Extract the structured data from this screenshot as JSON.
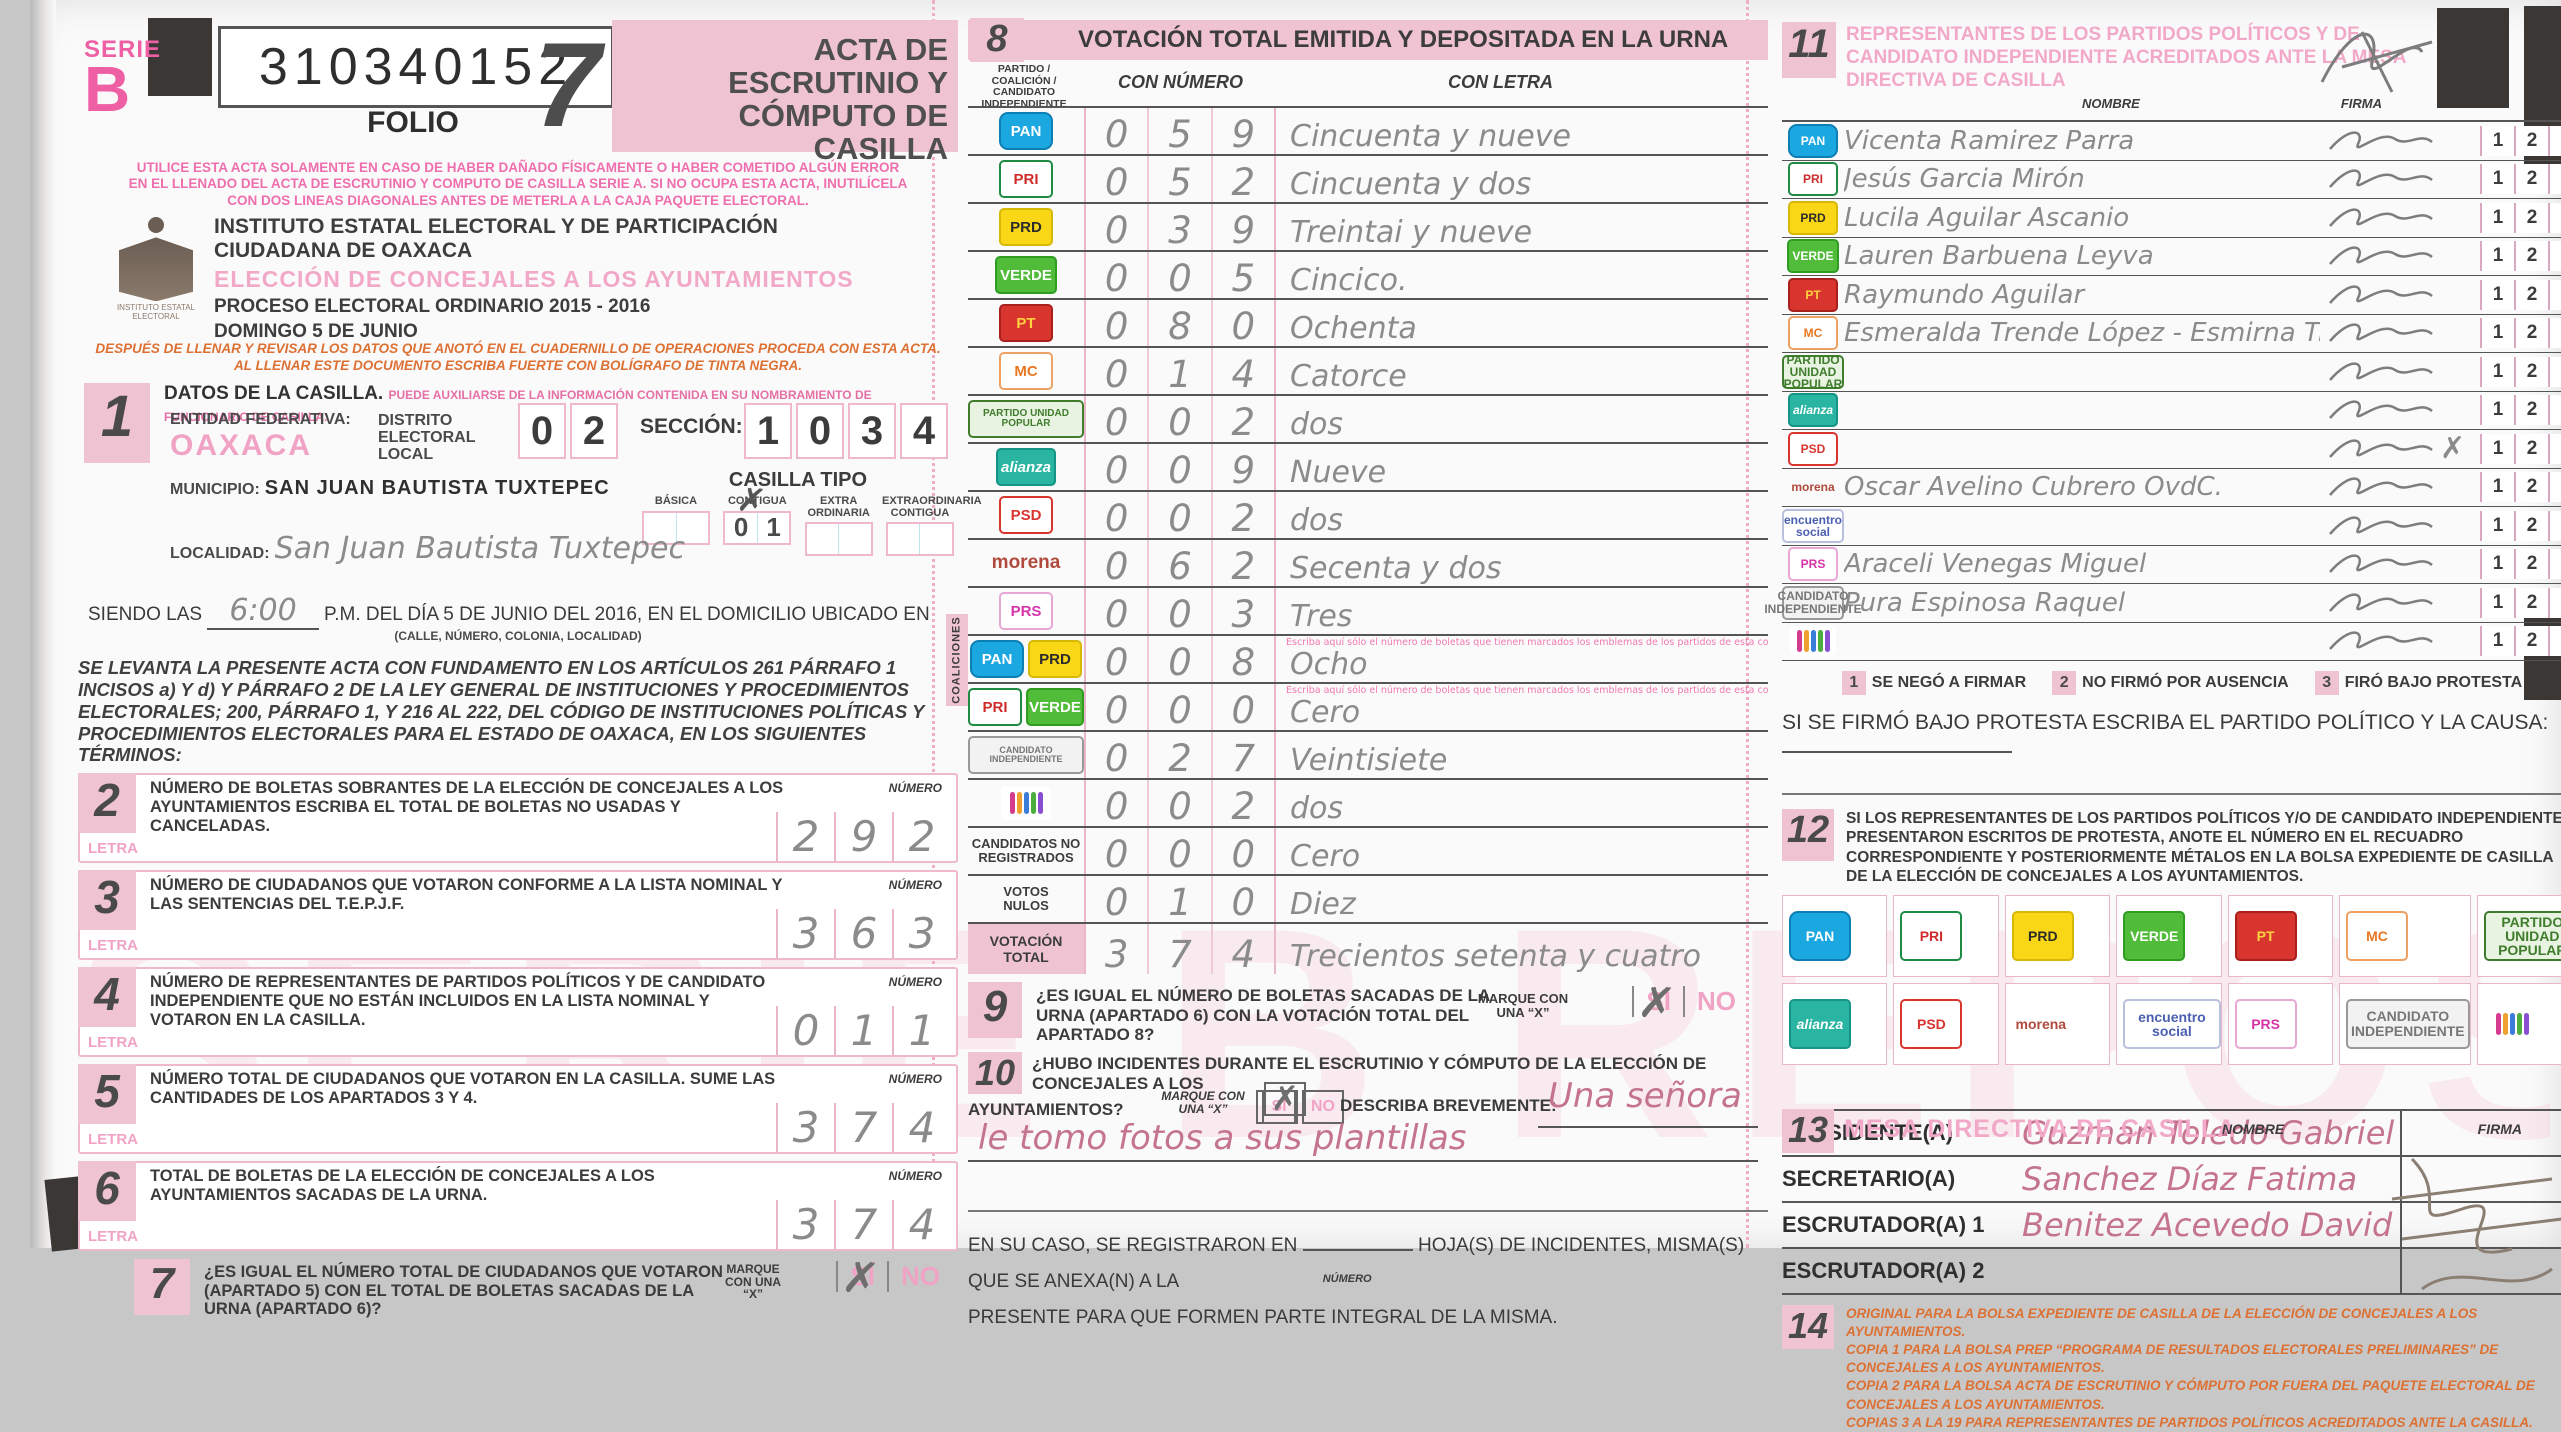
{
  "watermark": "SERIE B REPOSICION",
  "header": {
    "serie_label": "SERIE",
    "serie_letter": "B",
    "folio_number": "310340152",
    "folio_label": "FOLIO",
    "form_number": "7",
    "form_title": "ACTA DE ESCRUTINIO Y CÓMPUTO DE CASILLA",
    "warning_l1": "UTILICE ESTA ACTA SOLAMENTE EN CASO DE HABER DAÑADO FÍSICAMENTE O HABER COMETIDO ALGÚN ERROR",
    "warning_l2": "EN EL LLENADO DEL ACTA DE ESCRUTINIO Y COMPUTO DE CASILLA SERIE A. SI NO OCUPA ESTA ACTA, INUTILÍCELA",
    "warning_l3": "CON DOS LINEAS DIAGONALES ANTES DE METERLA A LA CAJA PAQUETE ELECTORAL.",
    "logo_caption": "INSTITUTO ESTATAL ELECTORAL",
    "institute": "INSTITUTO ESTATAL ELECTORAL Y DE PARTICIPACIÓN CIUDADANA DE OAXACA",
    "election": "ELECCIÓN DE CONCEJALES A LOS AYUNTAMIENTOS",
    "process": "PROCESO ELECTORAL ORDINARIO 2015 - 2016",
    "date": "DOMINGO 5 DE JUNIO",
    "instructions_l1": "DESPUÉS DE LLENAR Y REVISAR LOS DATOS QUE ANOTÓ EN EL CUADERNILLO DE OPERACIONES PROCEDA CON ESTA ACTA.",
    "instructions_l2": "AL LLENAR ESTE DOCUMENTO ESCRIBA FUERTE CON BOLÍGRAFO DE TINTA NEGRA."
  },
  "section1": {
    "num": "1",
    "title": "DATOS DE LA CASILLA.",
    "note": "PUEDE AUXILIARSE DE LA INFORMACIÓN CONTENIDA EN SU NOMBRAMIENTO DE FUNCIONARIO DE CASILLA.",
    "entidad_label": "ENTIDAD FEDERATIVA:",
    "entidad_value": "OAXACA",
    "distrito_label": "DISTRITO ELECTORAL LOCAL",
    "distrito_digits": "02",
    "seccion_label": "SECCIÓN:",
    "seccion_digits": "1034",
    "municipio_label": "MUNICIPIO:",
    "municipio_value": "SAN JUAN BAUTISTA TUXTEPEC",
    "casilla_tipo_label": "CASILLA TIPO",
    "tipos": [
      {
        "label": "BÁSICA",
        "mark": "",
        "digits": ""
      },
      {
        "label": "CONTIGUA",
        "mark": "✗",
        "digits": "01"
      },
      {
        "label": "EXTRA ORDINARIA",
        "mark": "",
        "digits": ""
      },
      {
        "label": "EXTRAORDINARIA CONTIGUA",
        "mark": "",
        "digits": ""
      }
    ],
    "localidad_label": "LOCALIDAD:",
    "localidad_value": "San Juan Bautista Tuxtepec",
    "siendo_prefix": "SIENDO LAS",
    "time_value": "6:00",
    "siendo_suffix": "P.M. DEL DÍA 5 DE JUNIO DEL 2016, EN EL DOMICILIO UBICADO EN",
    "street_note": "(CALLE, NÚMERO, COLONIA, LOCALIDAD)"
  },
  "legal_text": "SE LEVANTA LA PRESENTE ACTA CON FUNDAMENTO EN LOS ARTÍCULOS 261 PÁRRAFO 1 INCISOS a) Y d) Y PÁRRAFO 2 DE LA LEY GENERAL DE INSTITUCIONES Y PROCEDIMIENTOS ELECTORALES; 200, PÁRRAFO 1, Y 216 AL 222, DEL CÓDIGO DE INSTITUCIONES POLÍTICAS Y PROCEDIMIENTOS ELECTORALES PARA EL ESTADO DE OAXACA, EN LOS SIGUIENTES TÉRMINOS:",
  "counts": [
    {
      "num": "2",
      "text": "NÚMERO DE BOLETAS SOBRANTES DE LA ELECCIÓN DE CONCEJALES A LOS AYUNTAMIENTOS ESCRIBA EL TOTAL DE BOLETAS NO USADAS Y CANCELADAS.",
      "numero_label": "NÚMERO",
      "letra_label": "LETRA",
      "value": "292"
    },
    {
      "num": "3",
      "text": "NÚMERO DE CIUDADANOS QUE VOTARON CONFORME A LA LISTA NOMINAL Y LAS SENTENCIAS DEL T.E.P.J.F.",
      "numero_label": "NÚMERO",
      "letra_label": "LETRA",
      "value": "363"
    },
    {
      "num": "4",
      "text": "NÚMERO DE REPRESENTANTES DE PARTIDOS POLÍTICOS Y DE CANDIDATO INDEPENDIENTE QUE NO ESTÁN INCLUIDOS EN LA LISTA NOMINAL Y VOTARON EN LA CASILLA.",
      "numero_label": "NÚMERO",
      "letra_label": "LETRA",
      "value": "011"
    },
    {
      "num": "5",
      "text": "NÚMERO TOTAL DE CIUDADANOS QUE VOTARON EN LA CASILLA. SUME LAS CANTIDADES DE LOS APARTADOS 3 Y 4.",
      "numero_label": "NÚMERO",
      "letra_label": "LETRA",
      "value": "374"
    },
    {
      "num": "6",
      "text": "TOTAL DE BOLETAS DE LA ELECCIÓN DE CONCEJALES A LOS AYUNTAMIENTOS SACADAS DE LA URNA.",
      "numero_label": "NÚMERO",
      "letra_label": "LETRA",
      "value": "374"
    }
  ],
  "section7": {
    "num": "7",
    "question": "¿ES IGUAL EL NÚMERO TOTAL DE CIUDADANOS QUE VOTARON (APARTADO 5) CON EL TOTAL DE BOLETAS SACADAS DE LA URNA (APARTADO 6)?",
    "marque": "MARQUE CON UNA “X”",
    "si": "SÍ",
    "no": "NO",
    "answer": "SÍ"
  },
  "section8": {
    "num": "8",
    "title": "VOTACIÓN TOTAL EMITIDA Y DEPOSITADA EN LA URNA",
    "col_party": "PARTIDO / COALICIÓN / CANDIDATO INDEPENDIENTE",
    "col_num": "CON NÚMERO",
    "col_letra": "CON LETRA",
    "coaliciones_label": "COALICIONES",
    "rows": [
      {
        "party": "PAN",
        "logo": "pan-logo",
        "logo_class": "l-pan",
        "logo_text": "PAN",
        "logo_class2": "none",
        "logo_text2": "",
        "digits": "059",
        "letra": "Cincuenta y nueve",
        "note": "",
        "note_class": "none",
        "row_class": ""
      },
      {
        "party": "PRI",
        "logo": "pri-logo",
        "logo_class": "l-pri",
        "logo_text": "PRI",
        "logo_class2": "none",
        "logo_text2": "",
        "digits": "052",
        "letra": "Cincuenta y dos",
        "note": "",
        "note_class": "none",
        "row_class": ""
      },
      {
        "party": "PRD",
        "logo": "prd-logo",
        "logo_class": "l-prd",
        "logo_text": "PRD",
        "logo_class2": "none",
        "logo_text2": "",
        "digits": "039",
        "letra": "Treintai y nueve",
        "note": "",
        "note_class": "none",
        "row_class": ""
      },
      {
        "party": "PARTIDO VERDE",
        "logo": "verde-logo",
        "logo_class": "l-verde",
        "logo_text": "VERDE",
        "logo_class2": "none",
        "logo_text2": "",
        "digits": "005",
        "letra": "Cincico.",
        "note": "",
        "note_class": "none",
        "row_class": ""
      },
      {
        "party": "PT",
        "logo": "pt-logo",
        "logo_class": "l-pt",
        "logo_text": "PT",
        "logo_class2": "none",
        "logo_text2": "",
        "digits": "080",
        "letra": "Ochenta",
        "note": "",
        "note_class": "none",
        "row_class": ""
      },
      {
        "party": "MOVIMIENTO CIUDADANO",
        "logo": "movimiento-ciudadano-logo",
        "logo_class": "l-mc",
        "logo_text": "MC",
        "logo_class2": "none",
        "logo_text2": "",
        "digits": "014",
        "letra": "Catorce",
        "note": "",
        "note_class": "none",
        "row_class": ""
      },
      {
        "party": "PARTIDO UNIDAD POPULAR",
        "logo": "unidad-popular-logo",
        "logo_class": "l-up",
        "logo_text": "PARTIDO UNIDAD POPULAR",
        "logo_class2": "none",
        "logo_text2": "",
        "digits": "002",
        "letra": "dos",
        "note": "",
        "note_class": "none",
        "row_class": ""
      },
      {
        "party": "NUEVA ALIANZA",
        "logo": "nueva-alianza-logo",
        "logo_class": "l-na",
        "logo_text": "alianza",
        "logo_class2": "none",
        "logo_text2": "",
        "digits": "009",
        "letra": "Nueve",
        "note": "",
        "note_class": "none",
        "row_class": ""
      },
      {
        "party": "PSD",
        "logo": "psd-logo",
        "logo_class": "l-psd",
        "logo_text": "PSD",
        "logo_class2": "none",
        "logo_text2": "",
        "digits": "002",
        "letra": "dos",
        "note": "",
        "note_class": "none",
        "row_class": ""
      },
      {
        "party": "MORENA",
        "logo": "morena-logo",
        "logo_class": "l-morena",
        "logo_text": "morena",
        "logo_class2": "none",
        "logo_text2": "",
        "digits": "062",
        "letra": "Secenta y dos",
        "note": "",
        "note_class": "none",
        "row_class": ""
      },
      {
        "party": "PRS",
        "logo": "prs-logo",
        "logo_class": "l-prs",
        "logo_text": "PRS",
        "logo_class2": "none",
        "logo_text2": "",
        "digits": "003",
        "letra": "Tres",
        "note": "",
        "note_class": "none",
        "row_class": ""
      },
      {
        "party": "COALICIÓN PAN-PRD",
        "logo": "coalicion-pan-prd-logos",
        "logo_class": "l-pan",
        "logo_text": "PAN",
        "logo_class2": "l-prd",
        "logo_text2": "PRD",
        "digits": "008",
        "letra": "Ocho",
        "note": "Escriba aquí sólo el número de boletas que tienen marcados los emblemas de los partidos de esta coalición",
        "note_class": "conote",
        "row_class": ""
      },
      {
        "party": "COALICIÓN PRI-VERDE",
        "logo": "coalicion-pri-verde-logos",
        "logo_class": "l-pri",
        "logo_text": "PRI",
        "logo_class2": "l-verde",
        "logo_text2": "VERDE",
        "digits": "000",
        "letra": "Cero",
        "note": "Escriba aquí sólo el número de boletas que tienen marcados los emblemas de los partidos de esta coalición",
        "note_class": "conote",
        "row_class": ""
      },
      {
        "party": "CANDIDATO INDEPENDIENTE",
        "logo": "candidato-independiente-logo",
        "logo_class": "l-ci",
        "logo_text": "CANDIDATO INDEPENDIENTE",
        "logo_class2": "none",
        "logo_text2": "",
        "digits": "027",
        "letra": "Veintisiete",
        "note": "",
        "note_class": "none",
        "row_class": ""
      },
      {
        "party": "CANDIDATO INDEPENDIENTE (MANO)",
        "logo": "mano-multicolor-logo",
        "logo_class": "l-hand",
        "logo_text": "✌",
        "logo_class2": "none",
        "logo_text2": "",
        "digits": "002",
        "letra": "dos",
        "note": "",
        "note_class": "none",
        "row_class": ""
      },
      {
        "party": "CANDIDATOS NO REGISTRADOS",
        "logo": "",
        "logo_class": "l-label",
        "logo_text": "CANDIDATOS NO\nREGISTRADOS",
        "logo_class2": "none",
        "logo_text2": "",
        "digits": "000",
        "letra": "Cero",
        "note": "",
        "note_class": "none",
        "row_class": ""
      },
      {
        "party": "VOTOS NULOS",
        "logo": "",
        "logo_class": "l-label",
        "logo_text": "VOTOS\nNULOS",
        "logo_class2": "none",
        "logo_text2": "",
        "digits": "010",
        "letra": "Diez",
        "note": "",
        "note_class": "none",
        "row_class": ""
      },
      {
        "party": "VOTACIÓN TOTAL",
        "logo": "",
        "logo_class": "l-total",
        "logo_text": "VOTACIÓN\nTOTAL",
        "logo_class2": "none",
        "logo_text2": "",
        "digits": "374",
        "letra": "Trecientos setenta y cuatro",
        "note": "",
        "note_class": "none",
        "row_class": "total"
      }
    ]
  },
  "section9": {
    "num": "9",
    "question": "¿ES IGUAL EL NÚMERO DE BOLETAS SACADAS DE LA URNA (APARTADO 6) CON LA VOTACIÓN TOTAL DEL APARTADO 8?",
    "marque": "MARQUE CON UNA “X”",
    "si": "SÍ",
    "no": "NO",
    "answer": "SÍ"
  },
  "section10": {
    "num": "10",
    "q_line1": "¿HUBO INCIDENTES DURANTE EL ESCRUTINIO Y CÓMPUTO DE LA ELECCIÓN  DE CONCEJALES A LOS",
    "q_line2": "AYUNTAMIENTOS?",
    "marque": "MARQUE CON UNA “X”",
    "si": "SÍ",
    "no": "NO",
    "answer": "SÍ",
    "describe_label": "DESCRIBA BREVEMENTE:",
    "answer_line1": "Una señora",
    "answer_line2": "le tomo fotos a sus plantillas"
  },
  "incidents": {
    "pre": "EN SU CASO, SE REGISTRARON EN",
    "numero_label": "NÚMERO",
    "post": "HOJA(S) DE INCIDENTES, MISMA(S) QUE SE ANEXA(N) A LA",
    "post2": "PRESENTE PARA QUE FORMEN PARTE INTEGRAL DE LA MISMA."
  },
  "section11": {
    "num": "11",
    "title": "REPRESENTANTES DE LOS PARTIDOS POLÍTICOS Y DE CANDIDATO INDEPENDIENTE ACREDITADOS ANTE LA MESA DIRECTIVA DE CASILLA",
    "nombre_label": "NOMBRE",
    "firma_label": "FIRMA",
    "c1": "1",
    "c2": "2",
    "c3": "3",
    "rows": [
      {
        "logo": "pan-logo",
        "logo_class": "l-pan",
        "logo_text": "PAN",
        "name": "Vicenta Ramirez Parra",
        "sig_class": "sig",
        "mark": ""
      },
      {
        "logo": "pri-logo",
        "logo_class": "l-pri",
        "logo_text": "PRI",
        "name": "Jesús Garcia Mirón",
        "sig_class": "sig none",
        "mark": ""
      },
      {
        "logo": "prd-logo",
        "logo_class": "l-prd",
        "logo_text": "PRD",
        "name": "Lucila Aguilar Ascanio",
        "sig_class": "sig",
        "mark": ""
      },
      {
        "logo": "verde-logo",
        "logo_class": "l-verde",
        "logo_text": "VERDE",
        "name": "Lauren Barbuena Leyva",
        "sig_class": "sig",
        "mark": ""
      },
      {
        "logo": "pt-logo",
        "logo_class": "l-pt",
        "logo_text": "PT",
        "name": "Raymundo Aguilar",
        "sig_class": "sig",
        "mark": ""
      },
      {
        "logo": "movimiento-ciudadano-logo",
        "logo_class": "l-mc",
        "logo_text": "MC",
        "name": "Esmeralda Trende López - Esmirna Trenado L.",
        "sig_class": "sig none",
        "mark": ""
      },
      {
        "logo": "unidad-popular-logo",
        "logo_class": "l-up",
        "logo_text": "PARTIDO UNIDAD POPULAR",
        "name": "",
        "sig_class": "sig none",
        "mark": ""
      },
      {
        "logo": "nueva-alianza-logo",
        "logo_class": "l-na",
        "logo_text": "alianza",
        "name": "",
        "sig_class": "sig none",
        "mark": ""
      },
      {
        "logo": "psd-logo",
        "logo_class": "l-psd",
        "logo_text": "PSD",
        "name": "",
        "sig_class": "sig none",
        "mark": "✗"
      },
      {
        "logo": "morena-logo",
        "logo_class": "l-morena",
        "logo_text": "morena",
        "name": "Oscar Avelino Cubrero  OvdC.",
        "sig_class": "sig none",
        "mark": ""
      },
      {
        "logo": "encuentro-social-logo",
        "logo_class": "l-es",
        "logo_text": "encuentro social",
        "name": "",
        "sig_class": "sig none",
        "mark": ""
      },
      {
        "logo": "prs-logo",
        "logo_class": "l-prs",
        "logo_text": "PRS",
        "name": "Araceli Venegas Miguel",
        "sig_class": "sig",
        "mark": ""
      },
      {
        "logo": "candidato-independiente-logo",
        "logo_class": "l-ci",
        "logo_text": "CANDIDATO INDEPENDIENTE",
        "name": "Pura Espinosa Raquel",
        "sig_class": "sig",
        "mark": ""
      },
      {
        "logo": "mano-multicolor-logo",
        "logo_class": "l-hand",
        "logo_text": "✌",
        "name": "",
        "sig_class": "sig none",
        "mark": ""
      }
    ],
    "legend": [
      {
        "n": "1",
        "t": "SE NEGÓ A FIRMAR"
      },
      {
        "n": "2",
        "t": "NO FIRMÓ POR AUSENCIA"
      },
      {
        "n": "3",
        "t": "FIRÓ BAJO PROTESTA"
      }
    ],
    "protest_line": "SI SE FIRMÓ BAJO PROTESTA ESCRIBA EL PARTIDO POLÍTICO Y LA CAUSA:"
  },
  "section12": {
    "num": "12",
    "text": "SI LOS REPRESENTANTES DE LOS PARTIDOS POLÍTICOS Y/O DE CANDIDATO INDEPENDIENTE PRESENTARON ESCRITOS DE PROTESTA, ANOTE EL NÚMERO EN EL RECUADRO CORRESPONDIENTE Y POSTERIORMENTE MÉTALOS EN LA BOLSA EXPEDIENTE DE CASILLA DE LA ELECCIÓN DE CONCEJALES A LOS AYUNTAMIENTOS.",
    "logos": [
      {
        "logo": "pan-logo",
        "logo_class": "l-pan",
        "logo_text": "PAN"
      },
      {
        "logo": "pri-logo",
        "logo_class": "l-pri",
        "logo_text": "PRI"
      },
      {
        "logo": "prd-logo",
        "logo_class": "l-prd",
        "logo_text": "PRD"
      },
      {
        "logo": "verde-logo",
        "logo_class": "l-verde",
        "logo_text": "VERDE"
      },
      {
        "logo": "pt-logo",
        "logo_class": "l-pt",
        "logo_text": "PT"
      },
      {
        "logo": "movimiento-ciudadano-logo",
        "logo_class": "l-mc",
        "logo_text": "MC"
      },
      {
        "logo": "unidad-popular-logo",
        "logo_class": "l-up",
        "logo_text": "PARTIDO UNIDAD POPULAR"
      },
      {
        "logo": "nueva-alianza-logo",
        "logo_class": "l-na",
        "logo_text": "alianza"
      },
      {
        "logo": "psd-logo",
        "logo_class": "l-psd",
        "logo_text": "PSD"
      },
      {
        "logo": "morena-logo",
        "logo_class": "l-morena",
        "logo_text": "morena"
      },
      {
        "logo": "encuentro-social-logo",
        "logo_class": "l-es",
        "logo_text": "encuentro social"
      },
      {
        "logo": "prs-logo",
        "logo_class": "l-prs",
        "logo_text": "PRS"
      },
      {
        "logo": "candidato-independiente-logo",
        "logo_class": "l-ci",
        "logo_text": "CANDIDATO INDEPENDIENTE"
      },
      {
        "logo": "mano-multicolor-logo",
        "logo_class": "l-hand",
        "logo_text": "✌"
      }
    ]
  },
  "section13": {
    "num": "13",
    "title": "MESA DIRECTIVA DE CASILLA",
    "nombre_label": "NOMBRE",
    "firma_label": "FIRMA",
    "roles": [
      {
        "role": "PRESIDENTE(A)",
        "name": "Guzman Toledo Gabriel"
      },
      {
        "role": "SECRETARIO(A)",
        "name": "Sanchez Díaz Fatima"
      },
      {
        "role": "ESCRUTADOR(A) 1",
        "name": "Benitez Acevedo David"
      },
      {
        "role": "ESCRUTADOR(A) 2",
        "name": ""
      }
    ]
  },
  "section14": {
    "num": "14",
    "lines": [
      "ORIGINAL PARA LA BOLSA EXPEDIENTE DE CASILLA DE LA ELECCIÓN DE CONCEJALES A LOS AYUNTAMIENTOS.",
      "COPIA 1 PARA LA BOLSA PREP “PROGRAMA DE RESULTADOS ELECTORALES PRELIMINARES” DE CONCEJALES A LOS AYUNTAMIENTOS.",
      "COPIA 2 PARA LA BOLSA ACTA DE ESCRUTINIO Y CÓMPUTO POR FUERA DEL PAQUETE ELECTORAL DE CONCEJALES A LOS AYUNTAMIENTOS.",
      "COPIAS 3 A LA 19 PARA REPRESENTANTES DE PARTIDOS POLÍTICOS ACREDITADOS ANTE LA CASILLA."
    ]
  }
}
